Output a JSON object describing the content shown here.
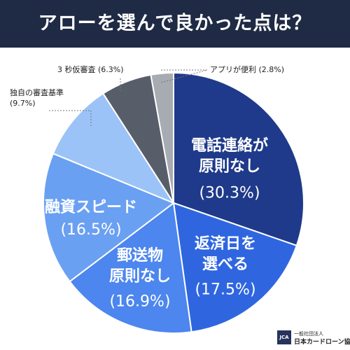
{
  "chart_data": {
    "type": "pie",
    "title": "アローを選んで良かった点は？",
    "start_angle_deg": 0,
    "direction": "clockwise",
    "slices": [
      {
        "label_lines": [
          "電話連絡が",
          "原則なし"
        ],
        "pct_text": "(30.3%)",
        "value": 30.3,
        "color": "#1f3a8a",
        "label_style": "inside-light"
      },
      {
        "label_lines": [
          "返済日を",
          "選べる"
        ],
        "pct_text": "(17.5%)",
        "value": 17.5,
        "color": "#2f66e0",
        "label_style": "inside-light"
      },
      {
        "label_lines": [
          "郵送物",
          "原則なし"
        ],
        "pct_text": "(16.9%)",
        "value": 16.9,
        "color": "#4c86ee",
        "label_style": "inside-dark"
      },
      {
        "label_lines": [
          "融資スピード"
        ],
        "pct_text": "(16.5%)",
        "value": 16.5,
        "color": "#6aa0f2",
        "label_style": "inside-light"
      },
      {
        "label_lines": [
          "独自の審査基準"
        ],
        "pct_text": "(9.7%)",
        "value": 9.7,
        "color": "#9cc3f7",
        "label_style": "outside"
      },
      {
        "label_lines": [
          "3 秒仮審査"
        ],
        "pct_text": "(6.3%)",
        "value": 6.3,
        "color": "#575d69",
        "label_style": "outside"
      },
      {
        "label_lines": [
          "アプリが便利"
        ],
        "pct_text": "(2.8%)",
        "value": 2.8,
        "color": "#a7abb2",
        "label_style": "outside"
      }
    ]
  },
  "logo": {
    "mark": "JCA",
    "sub": "一般社団法人",
    "name": "日本カードローン協会"
  }
}
